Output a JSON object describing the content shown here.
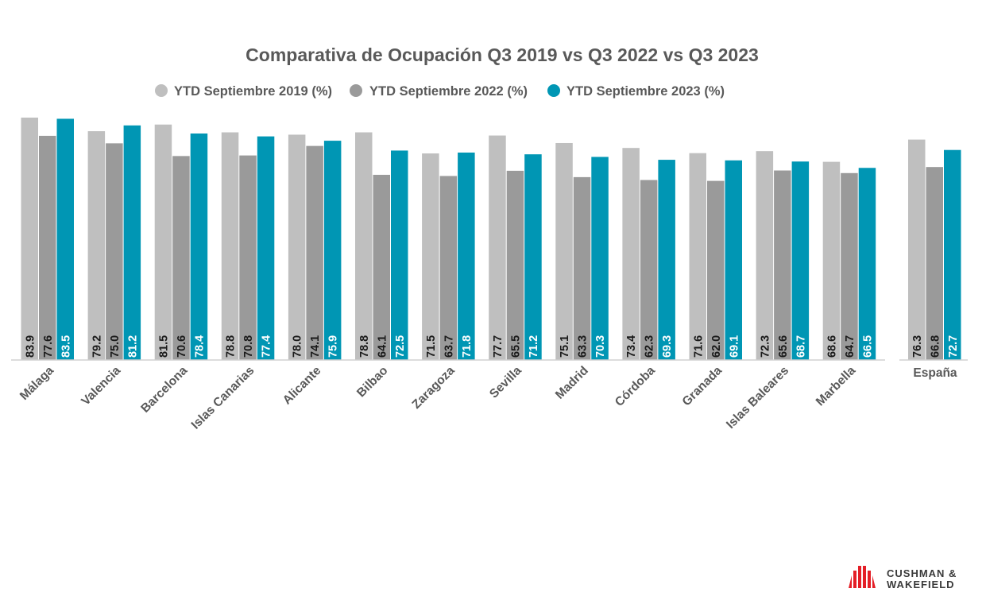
{
  "chart_data": {
    "type": "bar",
    "title": "Comparativa de Ocupación Q3 2019 vs Q3 2022 vs Q3 2023",
    "xlabel": "",
    "ylabel": "",
    "grid": false,
    "legend_position": "top-center",
    "categories": [
      "Málaga",
      "Valencia",
      "Barcelona",
      "Islas Canarias",
      "Alicante",
      "Bilbao",
      "Zaragoza",
      "Sevilla",
      "Madrid",
      "Córdoba",
      "Granada",
      "Islas Baleares",
      "Marbella"
    ],
    "series": [
      {
        "name": "YTD Septiembre 2019 (%)",
        "color": "#bfbfbf",
        "label_color": "#1a1a1a",
        "values": [
          83.9,
          79.2,
          81.5,
          78.8,
          78.0,
          78.8,
          71.5,
          77.7,
          75.1,
          73.4,
          71.6,
          72.3,
          68.6
        ]
      },
      {
        "name": "YTD Septiembre 2022 (%)",
        "color": "#9a9a9a",
        "label_color": "#1a1a1a",
        "values": [
          77.6,
          75.0,
          70.6,
          70.8,
          74.1,
          64.1,
          63.7,
          65.5,
          63.3,
          62.3,
          62.0,
          65.6,
          64.7
        ]
      },
      {
        "name": "YTD Septiembre 2023 (%)",
        "color": "#0096b4",
        "label_color": "#ffffff",
        "values": [
          83.5,
          81.2,
          78.4,
          77.4,
          75.9,
          72.5,
          71.8,
          71.2,
          70.3,
          69.3,
          69.1,
          68.7,
          66.5
        ]
      }
    ],
    "summary": {
      "category": "España",
      "values": [
        76.3,
        66.8,
        72.7
      ]
    }
  },
  "logo": {
    "line1": "CUSHMAN &",
    "line2": "WAKEFIELD"
  }
}
